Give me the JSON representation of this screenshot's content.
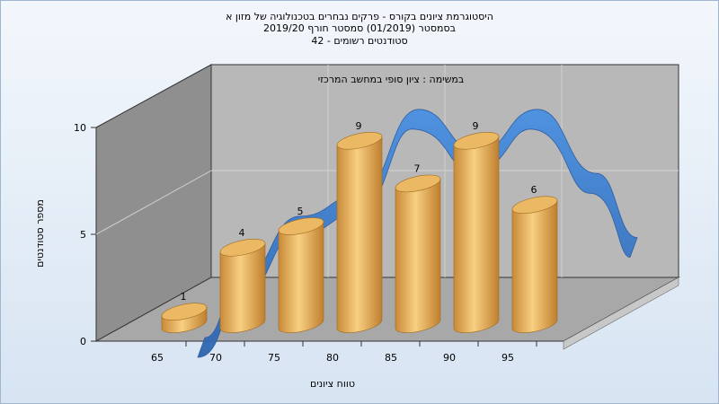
{
  "chart_data": {
    "type": "bar",
    "title_lines": [
      "היסטוגרמת ציונים בקורס - פרקים נבחרים בטכנולוגיה של מזון א",
      "בסמסטר  (01/2019)  סמסטר חורף 2019/20",
      "סטודנטים רשומים - 42"
    ],
    "annotation": "במשימה : ציון סופי במחשב המרכזי",
    "xlabel": "טווח ציונים",
    "ylabel": "מספר סטודנטים",
    "categories": [
      "65",
      "70",
      "75",
      "80",
      "85",
      "90",
      "95"
    ],
    "values": [
      1,
      4,
      5,
      9,
      7,
      9,
      6
    ],
    "yticks": [
      "0",
      "5",
      "10"
    ],
    "ylim": [
      0,
      10
    ],
    "bar_style": "3d-cylinder",
    "colors": {
      "bar": "#e0a850",
      "bar_top": "#ebb864",
      "curve": "#3b7dcc",
      "back_wall": "#b8b8b8",
      "side_wall": "#8c8c8c",
      "floor": "#a8a8a8"
    }
  }
}
